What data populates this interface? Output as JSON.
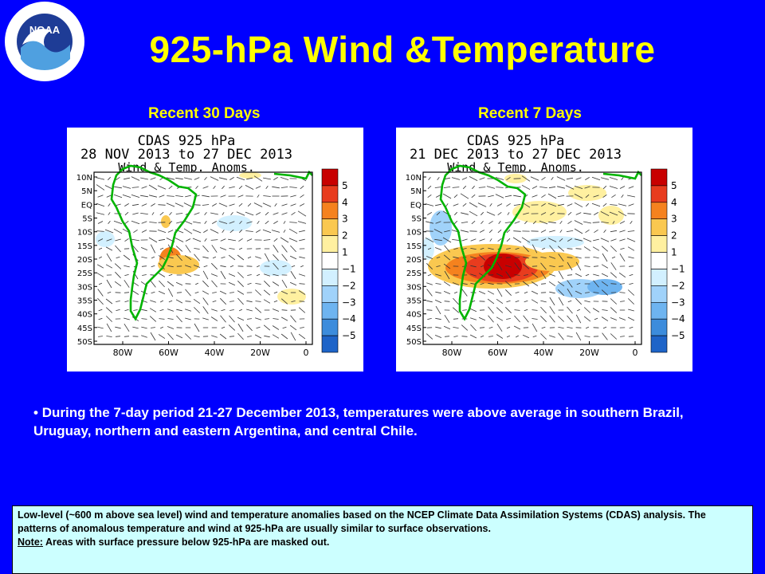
{
  "title": "925-hPa Wind &Temperature",
  "logo": {
    "icon": "noaa-logo",
    "text": "NOAA",
    "ring_text": "NATIONAL OCEANIC AND ATMOSPHERIC ADMINISTRATION · U.S. DEPARTMENT OF COMMERCE"
  },
  "panels": [
    {
      "heading": "Recent 30 Days",
      "map_line1": "CDAS 925 hPa",
      "map_line2": "28 NOV 2013 to 27 DEC 2013",
      "map_line3": "Wind & Temp. Anoms."
    },
    {
      "heading": "Recent 7 Days",
      "map_line1": "CDAS 925 hPa",
      "map_line2": "21 DEC 2013 to 27 DEC 2013",
      "map_line3": "Wind & Temp. Anoms."
    }
  ],
  "lat_labels": [
    "10N",
    "5N",
    "EQ",
    "5S",
    "10S",
    "15S",
    "20S",
    "25S",
    "30S",
    "35S",
    "40S",
    "45S",
    "50S"
  ],
  "lon_labels": [
    "80W",
    "60W",
    "40W",
    "20W",
    "0"
  ],
  "colorbar": {
    "labels": [
      "5",
      "4",
      "3",
      "2",
      "1",
      "−1",
      "−2",
      "−3",
      "−4",
      "−5"
    ],
    "colors": [
      "#c80000",
      "#e83c1e",
      "#f5821e",
      "#fac850",
      "#fff0a0",
      "#ffffff",
      "#d2f0ff",
      "#a0d2fa",
      "#6eb4f0",
      "#3c8cdc",
      "#1e64c8"
    ]
  },
  "bullet": "During the 7-day period 21-27 December 2013, temperatures were above average in southern Brazil, Uruguay, northern and eastern Argentina, and central Chile.",
  "footnote": {
    "text": "Low-level (~600 m above sea level) wind and temperature anomalies based on the NCEP Climate Data Assimilation Systems (CDAS) analysis. The patterns of anomalous temperature and wind at 925-hPa are usually similar to surface observations.",
    "note_label": "Note:",
    "note_text": " Areas with surface pressure below 925-hPa are masked out."
  }
}
